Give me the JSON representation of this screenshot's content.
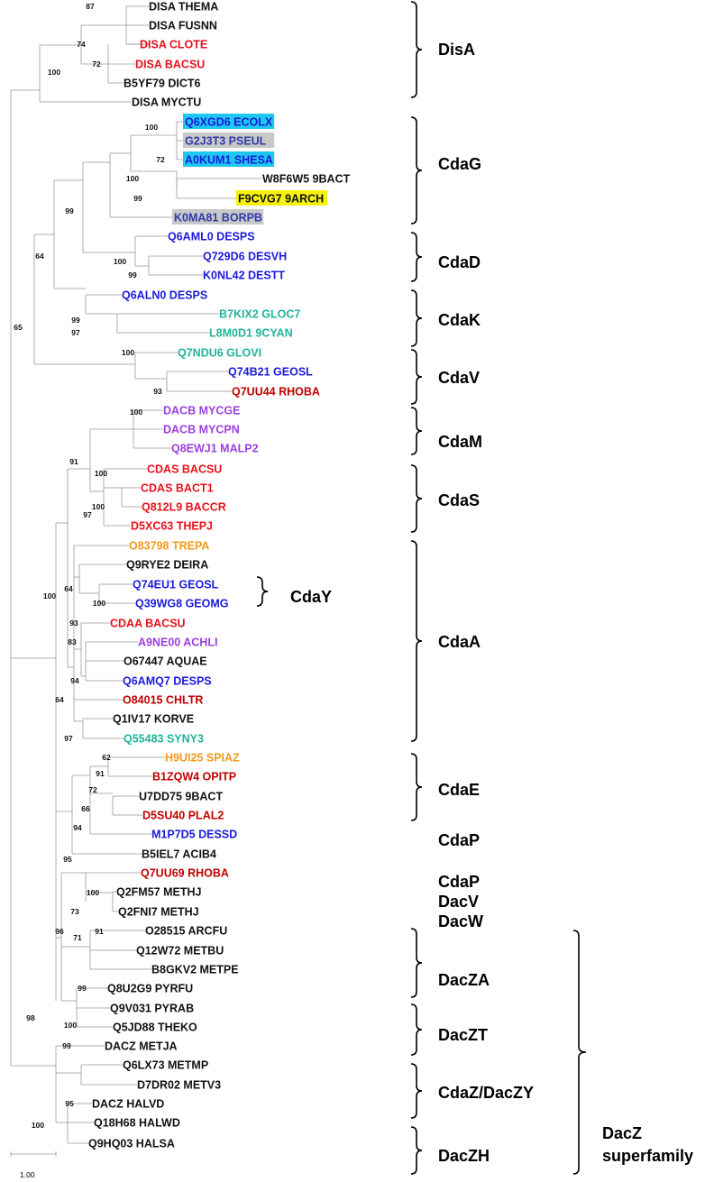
{
  "colors": {
    "black": "#111111",
    "red": "#e8101a",
    "darkred": "#c00000",
    "blue": "#1a1adb",
    "navy": "#2e3aa8",
    "teal": "#20b39a",
    "purple": "#9a3fe0",
    "orange": "#f29a1a",
    "hl_cyan": "#1ec7f0",
    "hl_gray": "#c8c8c8",
    "hl_yellow": "#f7f20a",
    "branch": "#999999"
  },
  "leaves": [
    {
      "label": "DISA THEMA",
      "color": "black"
    },
    {
      "label": "DISA FUSNN",
      "color": "black"
    },
    {
      "label": "DISA CLOTE",
      "color": "red"
    },
    {
      "label": "DISA BACSU",
      "color": "red"
    },
    {
      "label": "B5YF79 DICT6",
      "color": "black"
    },
    {
      "label": "DISA MYCTU",
      "color": "black"
    },
    {
      "label": "Q6XGD6 ECOLX",
      "color": "blue",
      "highlight": "hl_cyan"
    },
    {
      "label": "G2J3T3 PSEUL",
      "color": "navy",
      "highlight": "hl_gray"
    },
    {
      "label": "A0KUM1 SHESA",
      "color": "blue",
      "highlight": "hl_cyan"
    },
    {
      "label": "W8F6W5 9BACT",
      "color": "black"
    },
    {
      "label": "F9CVG7 9ARCH",
      "color": "black",
      "highlight": "hl_yellow"
    },
    {
      "label": "K0MA81 BORPB",
      "color": "navy",
      "highlight": "hl_gray"
    },
    {
      "label": "Q6AML0 DESPS",
      "color": "blue"
    },
    {
      "label": "Q729D6 DESVH",
      "color": "blue"
    },
    {
      "label": "K0NL42 DESTT",
      "color": "blue"
    },
    {
      "label": "Q6ALN0 DESPS",
      "color": "blue"
    },
    {
      "label": "B7KIX2 GLOC7",
      "color": "teal"
    },
    {
      "label": "L8M0D1 9CYAN",
      "color": "teal"
    },
    {
      "label": "Q7NDU6 GLOVI",
      "color": "teal"
    },
    {
      "label": "Q74B21 GEOSL",
      "color": "blue"
    },
    {
      "label": "Q7UU44 RHOBA",
      "color": "darkred"
    },
    {
      "label": "DACB MYCGE",
      "color": "purple"
    },
    {
      "label": "DACB MYCPN",
      "color": "purple"
    },
    {
      "label": "Q8EWJ1 MALP2",
      "color": "purple"
    },
    {
      "label": "CDAS BACSU",
      "color": "red"
    },
    {
      "label": "CDAS BACT1",
      "color": "red"
    },
    {
      "label": "Q812L9 BACCR",
      "color": "red"
    },
    {
      "label": "D5XC63 THEPJ",
      "color": "red"
    },
    {
      "label": "O83798 TREPA",
      "color": "orange"
    },
    {
      "label": "Q9RYE2 DEIRA",
      "color": "black"
    },
    {
      "label": "Q74EU1 GEOSL",
      "color": "blue"
    },
    {
      "label": "Q39WG8 GEOMG",
      "color": "blue"
    },
    {
      "label": "CDAA BACSU",
      "color": "red"
    },
    {
      "label": "A9NE00 ACHLI",
      "color": "purple"
    },
    {
      "label": "O67447 AQUAE",
      "color": "black"
    },
    {
      "label": "Q6AMQ7 DESPS",
      "color": "blue"
    },
    {
      "label": "O84015 CHLTR",
      "color": "darkred"
    },
    {
      "label": "Q1IV17 KORVE",
      "color": "black"
    },
    {
      "label": "Q55483 SYNY3",
      "color": "teal"
    },
    {
      "label": "H9UI25 SPIAZ",
      "color": "orange"
    },
    {
      "label": "B1ZQW4 OPITP",
      "color": "darkred"
    },
    {
      "label": "U7DD75 9BACT",
      "color": "black"
    },
    {
      "label": "D5SU40 PLAL2",
      "color": "darkred"
    },
    {
      "label": "M1P7D5 DESSD",
      "color": "blue"
    },
    {
      "label": "B5IEL7 ACIB4",
      "color": "black"
    },
    {
      "label": "Q7UU69 RHOBA",
      "color": "darkred"
    },
    {
      "label": "Q2FM57 METHJ",
      "color": "black"
    },
    {
      "label": "Q2FNI7 METHJ",
      "color": "black"
    },
    {
      "label": "O28515 ARCFU",
      "color": "black"
    },
    {
      "label": "Q12W72 METBU",
      "color": "black"
    },
    {
      "label": "B8GKV2 METPE",
      "color": "black"
    },
    {
      "label": "Q8U2G9 PYRFU",
      "color": "black"
    },
    {
      "label": "Q9V031 PYRAB",
      "color": "black"
    },
    {
      "label": "Q5JD88 THEKO",
      "color": "black"
    },
    {
      "label": "DACZ METJA",
      "color": "black"
    },
    {
      "label": "Q6LX73 METMP",
      "color": "black"
    },
    {
      "label": "D7DR02 METV3",
      "color": "black"
    },
    {
      "label": "DACZ HALVD",
      "color": "black"
    },
    {
      "label": "Q18H68 HALWD",
      "color": "black"
    },
    {
      "label": "Q9HQ03 HALSA",
      "color": "black"
    }
  ],
  "bootstrap": [
    "87",
    "74",
    "72",
    "100",
    "100",
    "72",
    "99",
    "100",
    "99",
    "100",
    "99",
    "64",
    "99",
    "97",
    "65",
    "100",
    "93",
    "100",
    "91",
    "100",
    "100",
    "97",
    "100",
    "64",
    "100",
    "93",
    "83",
    "94",
    "64",
    "97",
    "62",
    "91",
    "72",
    "66",
    "94",
    "95",
    "100",
    "73",
    "91",
    "71",
    "96",
    "99",
    "100",
    "98",
    "99",
    "95",
    "100"
  ],
  "groups": [
    "DisA",
    "CdaG",
    "CdaD",
    "CdaK",
    "CdaV",
    "CdaM",
    "CdaS",
    "CdaY",
    "CdaA",
    "CdaE",
    "CdaP",
    "CdaP",
    "DacV",
    "DacW",
    "DacZA",
    "DacZT",
    "CdaZ/DacZY",
    "DacZH"
  ],
  "superfamily": {
    "line1": "DacZ",
    "line2": "superfamily"
  },
  "scale_label": "1.00"
}
